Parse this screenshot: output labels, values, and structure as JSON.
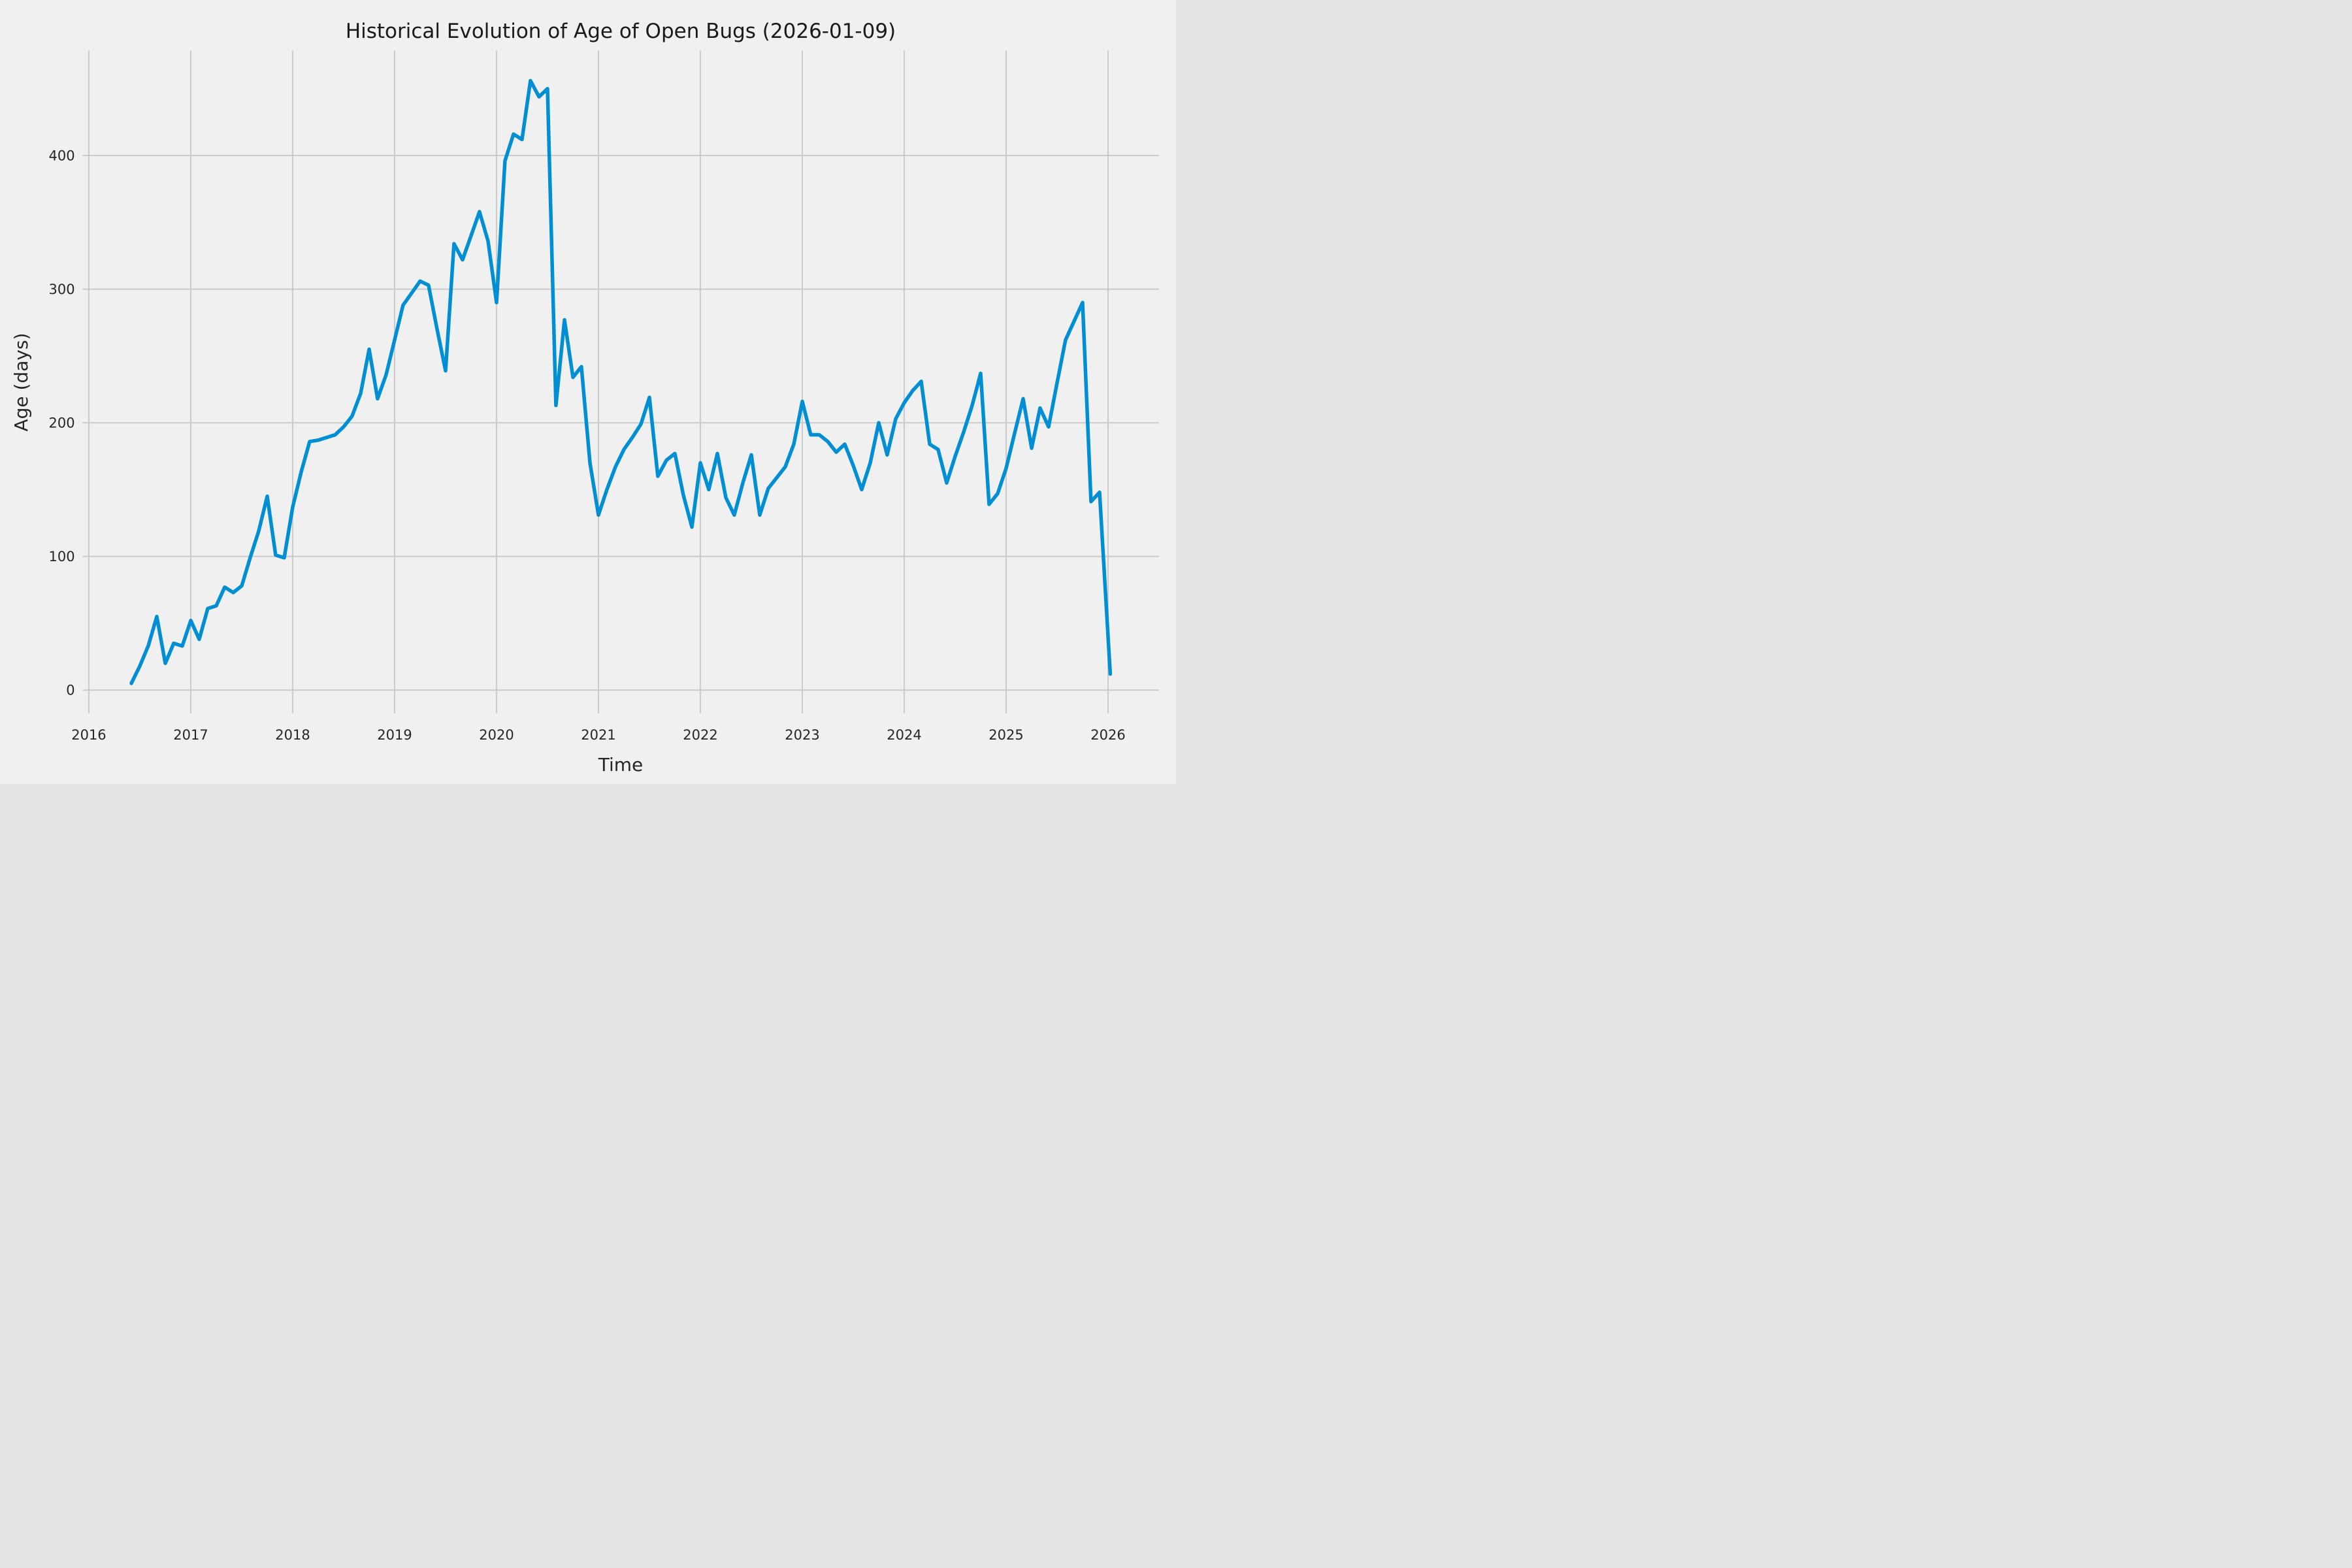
{
  "chart": {
    "title": "Historical Evolution of Age of Open Bugs (2026-01-09)",
    "xlabel": "Time",
    "ylabel": "Age (days)"
  },
  "chart_data": {
    "type": "line",
    "title": "Historical Evolution of Age of Open Bugs (2026-01-09)",
    "xlabel": "Time",
    "ylabel": "Age (days)",
    "legend": null,
    "grid": true,
    "style": "fivethirtyeight",
    "line_color": "#008FD5",
    "background_color": "#F0F0F0",
    "grid_color": "#CBCBCB",
    "text_color": "#262626",
    "x_ticks": [
      2016,
      2017,
      2018,
      2019,
      2020,
      2021,
      2022,
      2023,
      2024,
      2025,
      2026
    ],
    "y_ticks": [
      0,
      100,
      200,
      300,
      400
    ],
    "xlim": [
      2015.94,
      2026.5
    ],
    "ylim": [
      -17.5,
      478.5
    ],
    "x": [
      2016.417,
      2016.5,
      2016.583,
      2016.667,
      2016.75,
      2016.833,
      2016.917,
      2017.0,
      2017.083,
      2017.167,
      2017.25,
      2017.333,
      2017.417,
      2017.5,
      2017.583,
      2017.667,
      2017.75,
      2017.833,
      2017.917,
      2018.0,
      2018.083,
      2018.167,
      2018.25,
      2018.333,
      2018.417,
      2018.5,
      2018.583,
      2018.667,
      2018.75,
      2018.833,
      2018.917,
      2019.0,
      2019.083,
      2019.167,
      2019.25,
      2019.333,
      2019.417,
      2019.5,
      2019.583,
      2019.667,
      2019.75,
      2019.833,
      2019.917,
      2020.0,
      2020.083,
      2020.167,
      2020.25,
      2020.333,
      2020.417,
      2020.5,
      2020.583,
      2020.667,
      2020.75,
      2020.833,
      2020.917,
      2021.0,
      2021.083,
      2021.167,
      2021.25,
      2021.333,
      2021.417,
      2021.5,
      2021.583,
      2021.667,
      2021.75,
      2021.833,
      2021.917,
      2022.0,
      2022.083,
      2022.167,
      2022.25,
      2022.333,
      2022.417,
      2022.5,
      2022.583,
      2022.667,
      2022.75,
      2022.833,
      2022.917,
      2023.0,
      2023.083,
      2023.167,
      2023.25,
      2023.333,
      2023.417,
      2023.5,
      2023.583,
      2023.667,
      2023.75,
      2023.833,
      2023.917,
      2024.0,
      2024.083,
      2024.167,
      2024.25,
      2024.333,
      2024.417,
      2024.5,
      2024.583,
      2024.667,
      2024.75,
      2024.833,
      2024.917,
      2025.0,
      2025.083,
      2025.167,
      2025.25,
      2025.333,
      2025.417,
      2025.5,
      2025.583,
      2025.667,
      2025.75,
      2025.833,
      2025.917,
      2026.022
    ],
    "y": [
      5,
      18,
      33,
      55,
      20,
      35,
      33,
      52,
      38,
      61,
      63,
      77,
      73,
      78,
      99,
      119,
      145,
      101,
      99,
      137,
      163,
      186,
      187,
      189,
      191,
      197,
      205,
      222,
      255,
      218,
      236,
      262,
      288,
      297,
      306,
      303,
      270,
      239,
      334,
      322,
      340,
      358,
      336,
      290,
      396,
      416,
      412,
      456,
      444,
      450,
      213,
      277,
      234,
      242,
      170,
      131,
      150,
      167,
      180,
      189,
      199,
      219,
      160,
      172,
      177,
      146,
      122,
      170,
      150,
      177,
      144,
      131,
      155,
      176,
      131,
      151,
      159,
      167,
      184,
      216,
      191,
      191,
      186,
      178,
      184,
      168,
      150,
      170,
      200,
      176,
      203,
      215,
      224,
      231,
      184,
      180,
      155,
      175,
      193,
      213,
      237,
      139,
      147,
      166,
      192,
      218,
      181,
      211,
      197,
      230,
      262,
      276,
      290,
      141,
      148,
      12
    ]
  }
}
